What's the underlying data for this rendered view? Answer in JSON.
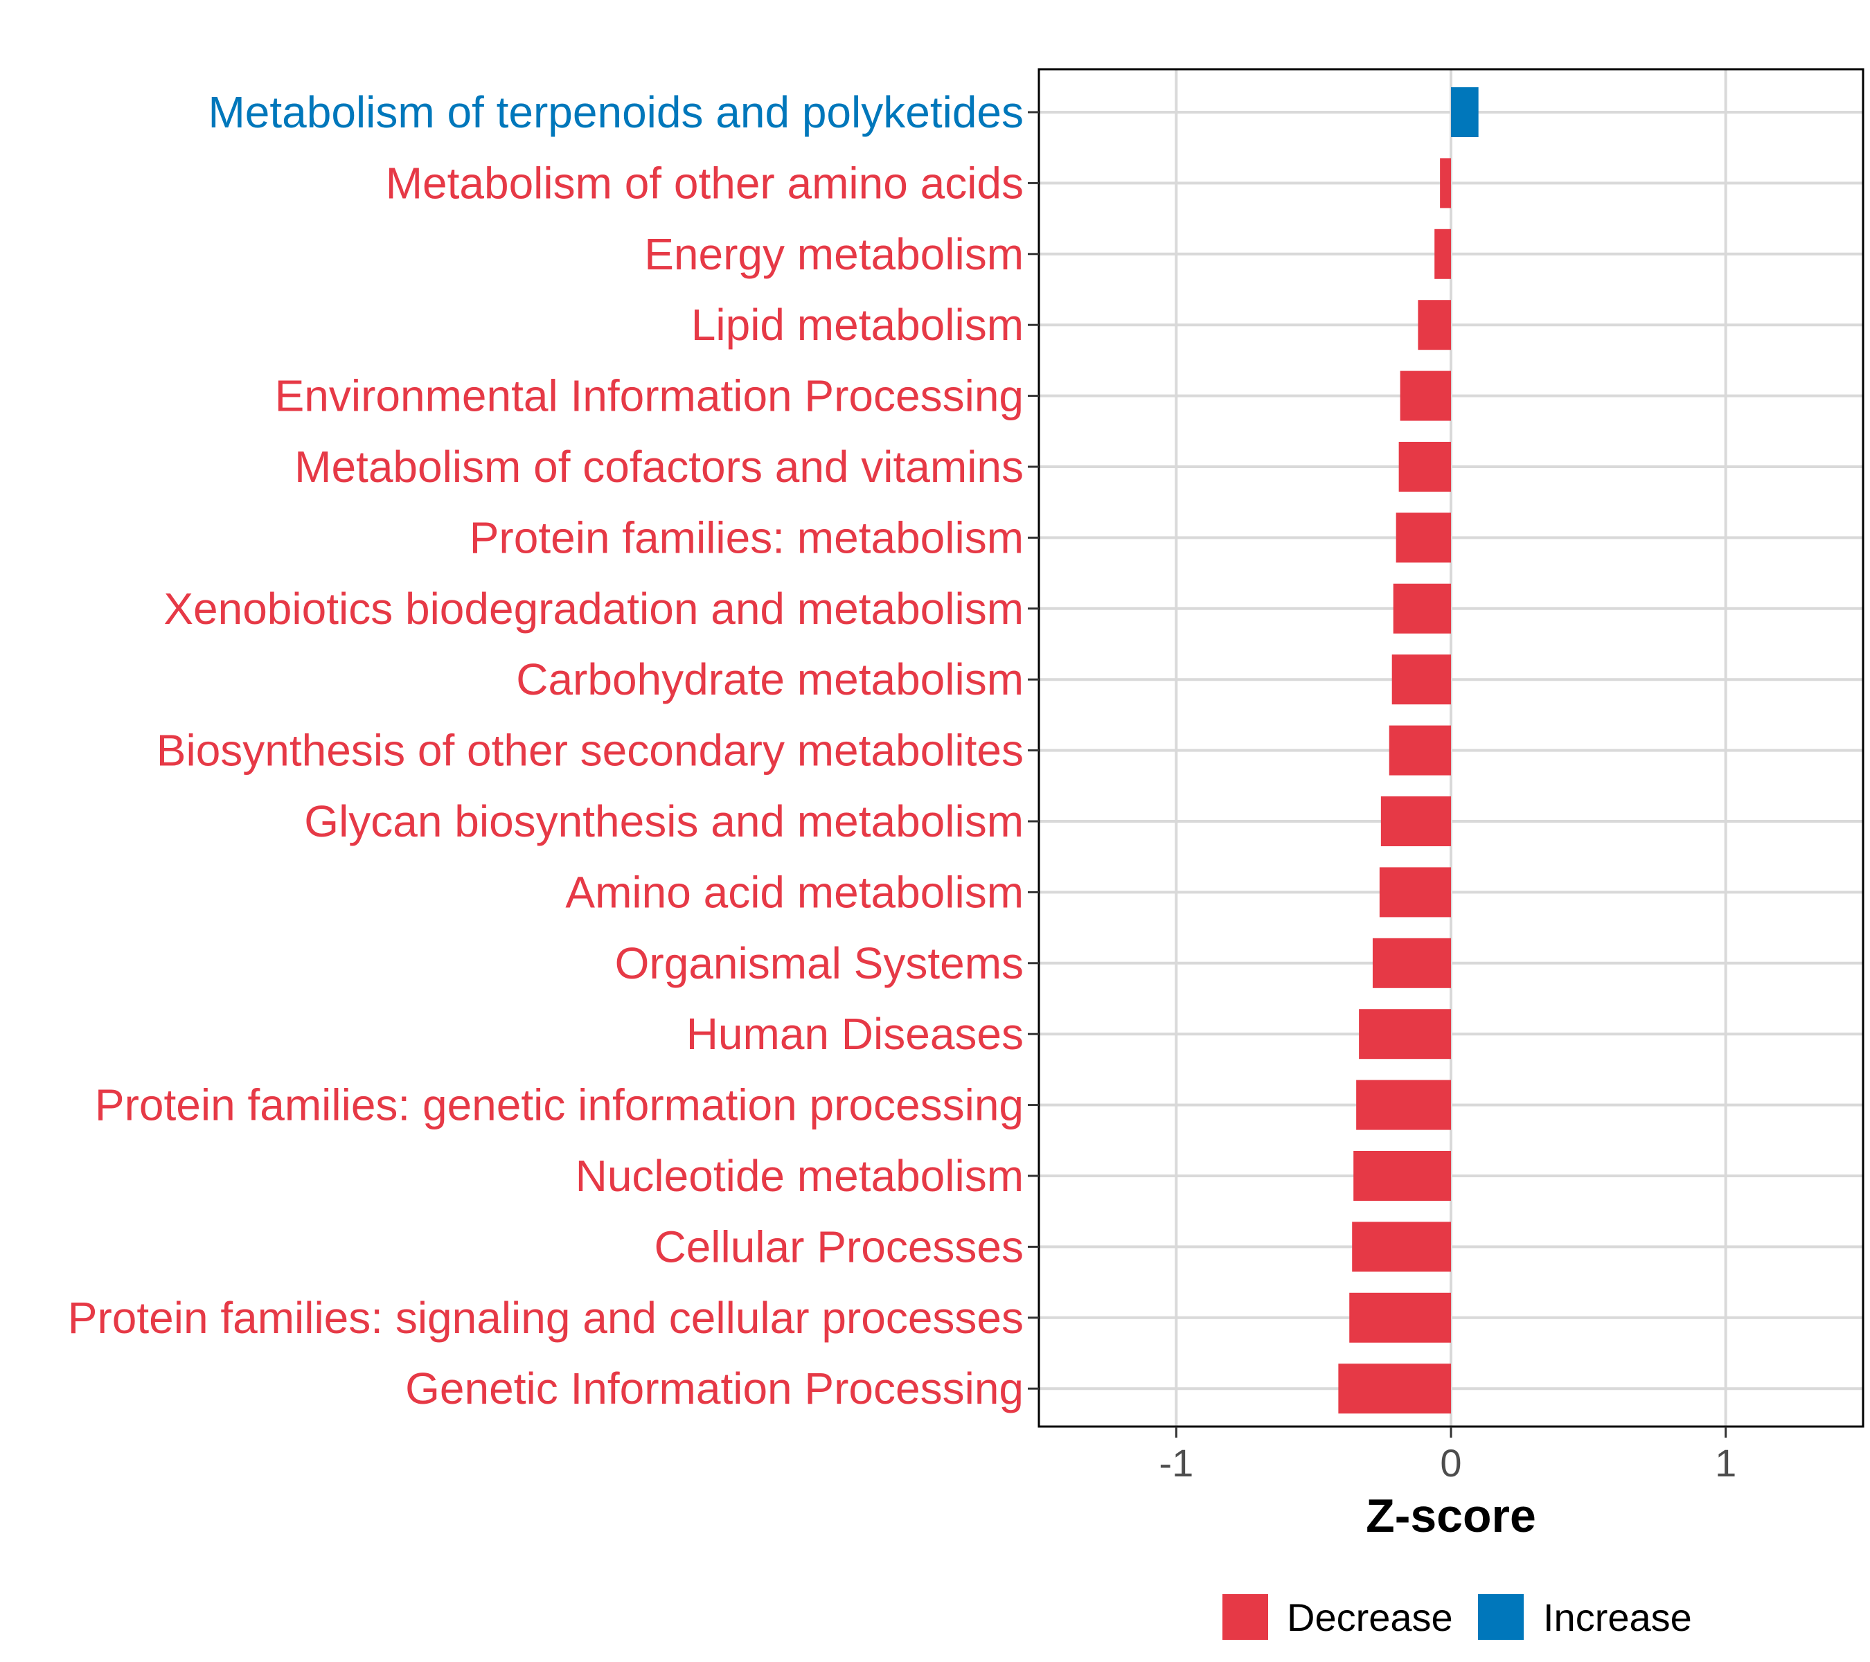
{
  "chart_data": {
    "type": "bar",
    "orientation": "horizontal",
    "categories": [
      "Metabolism of terpenoids and polyketides",
      "Metabolism of other amino acids",
      "Energy metabolism",
      "Lipid metabolism",
      "Environmental Information Processing",
      "Metabolism of cofactors and vitamins",
      "Protein families: metabolism",
      "Xenobiotics biodegradation and metabolism",
      "Carbohydrate metabolism",
      "Biosynthesis of other secondary metabolites",
      "Glycan biosynthesis and metabolism",
      "Amino acid metabolism",
      "Organismal Systems",
      "Human Diseases",
      "Protein families: genetic information processing",
      "Nucleotide metabolism",
      "Cellular Processes",
      "Protein families: signaling and cellular processes",
      "Genetic Information Processing"
    ],
    "values": [
      0.1,
      -0.04,
      -0.06,
      -0.12,
      -0.185,
      -0.19,
      -0.2,
      -0.21,
      -0.215,
      -0.225,
      -0.255,
      -0.26,
      -0.285,
      -0.335,
      -0.345,
      -0.355,
      -0.36,
      -0.37,
      -0.41
    ],
    "groups": [
      "Increase",
      "Decrease",
      "Decrease",
      "Decrease",
      "Decrease",
      "Decrease",
      "Decrease",
      "Decrease",
      "Decrease",
      "Decrease",
      "Decrease",
      "Decrease",
      "Decrease",
      "Decrease",
      "Decrease",
      "Decrease",
      "Decrease",
      "Decrease",
      "Decrease"
    ],
    "title": "",
    "xlabel": "Z-score",
    "ylabel": "",
    "xlim": [
      -1.5,
      1.5
    ],
    "xticks": [
      -1,
      0,
      1
    ],
    "xtick_labels": [
      "-1",
      "0",
      "1"
    ],
    "grid": true,
    "legend": {
      "position": "bottom",
      "entries": [
        {
          "label": "Decrease",
          "color": "#E63946"
        },
        {
          "label": "Increase",
          "color": "#0077BB"
        }
      ]
    },
    "colors": {
      "Decrease": "#E63946",
      "Increase": "#0077BB"
    }
  }
}
